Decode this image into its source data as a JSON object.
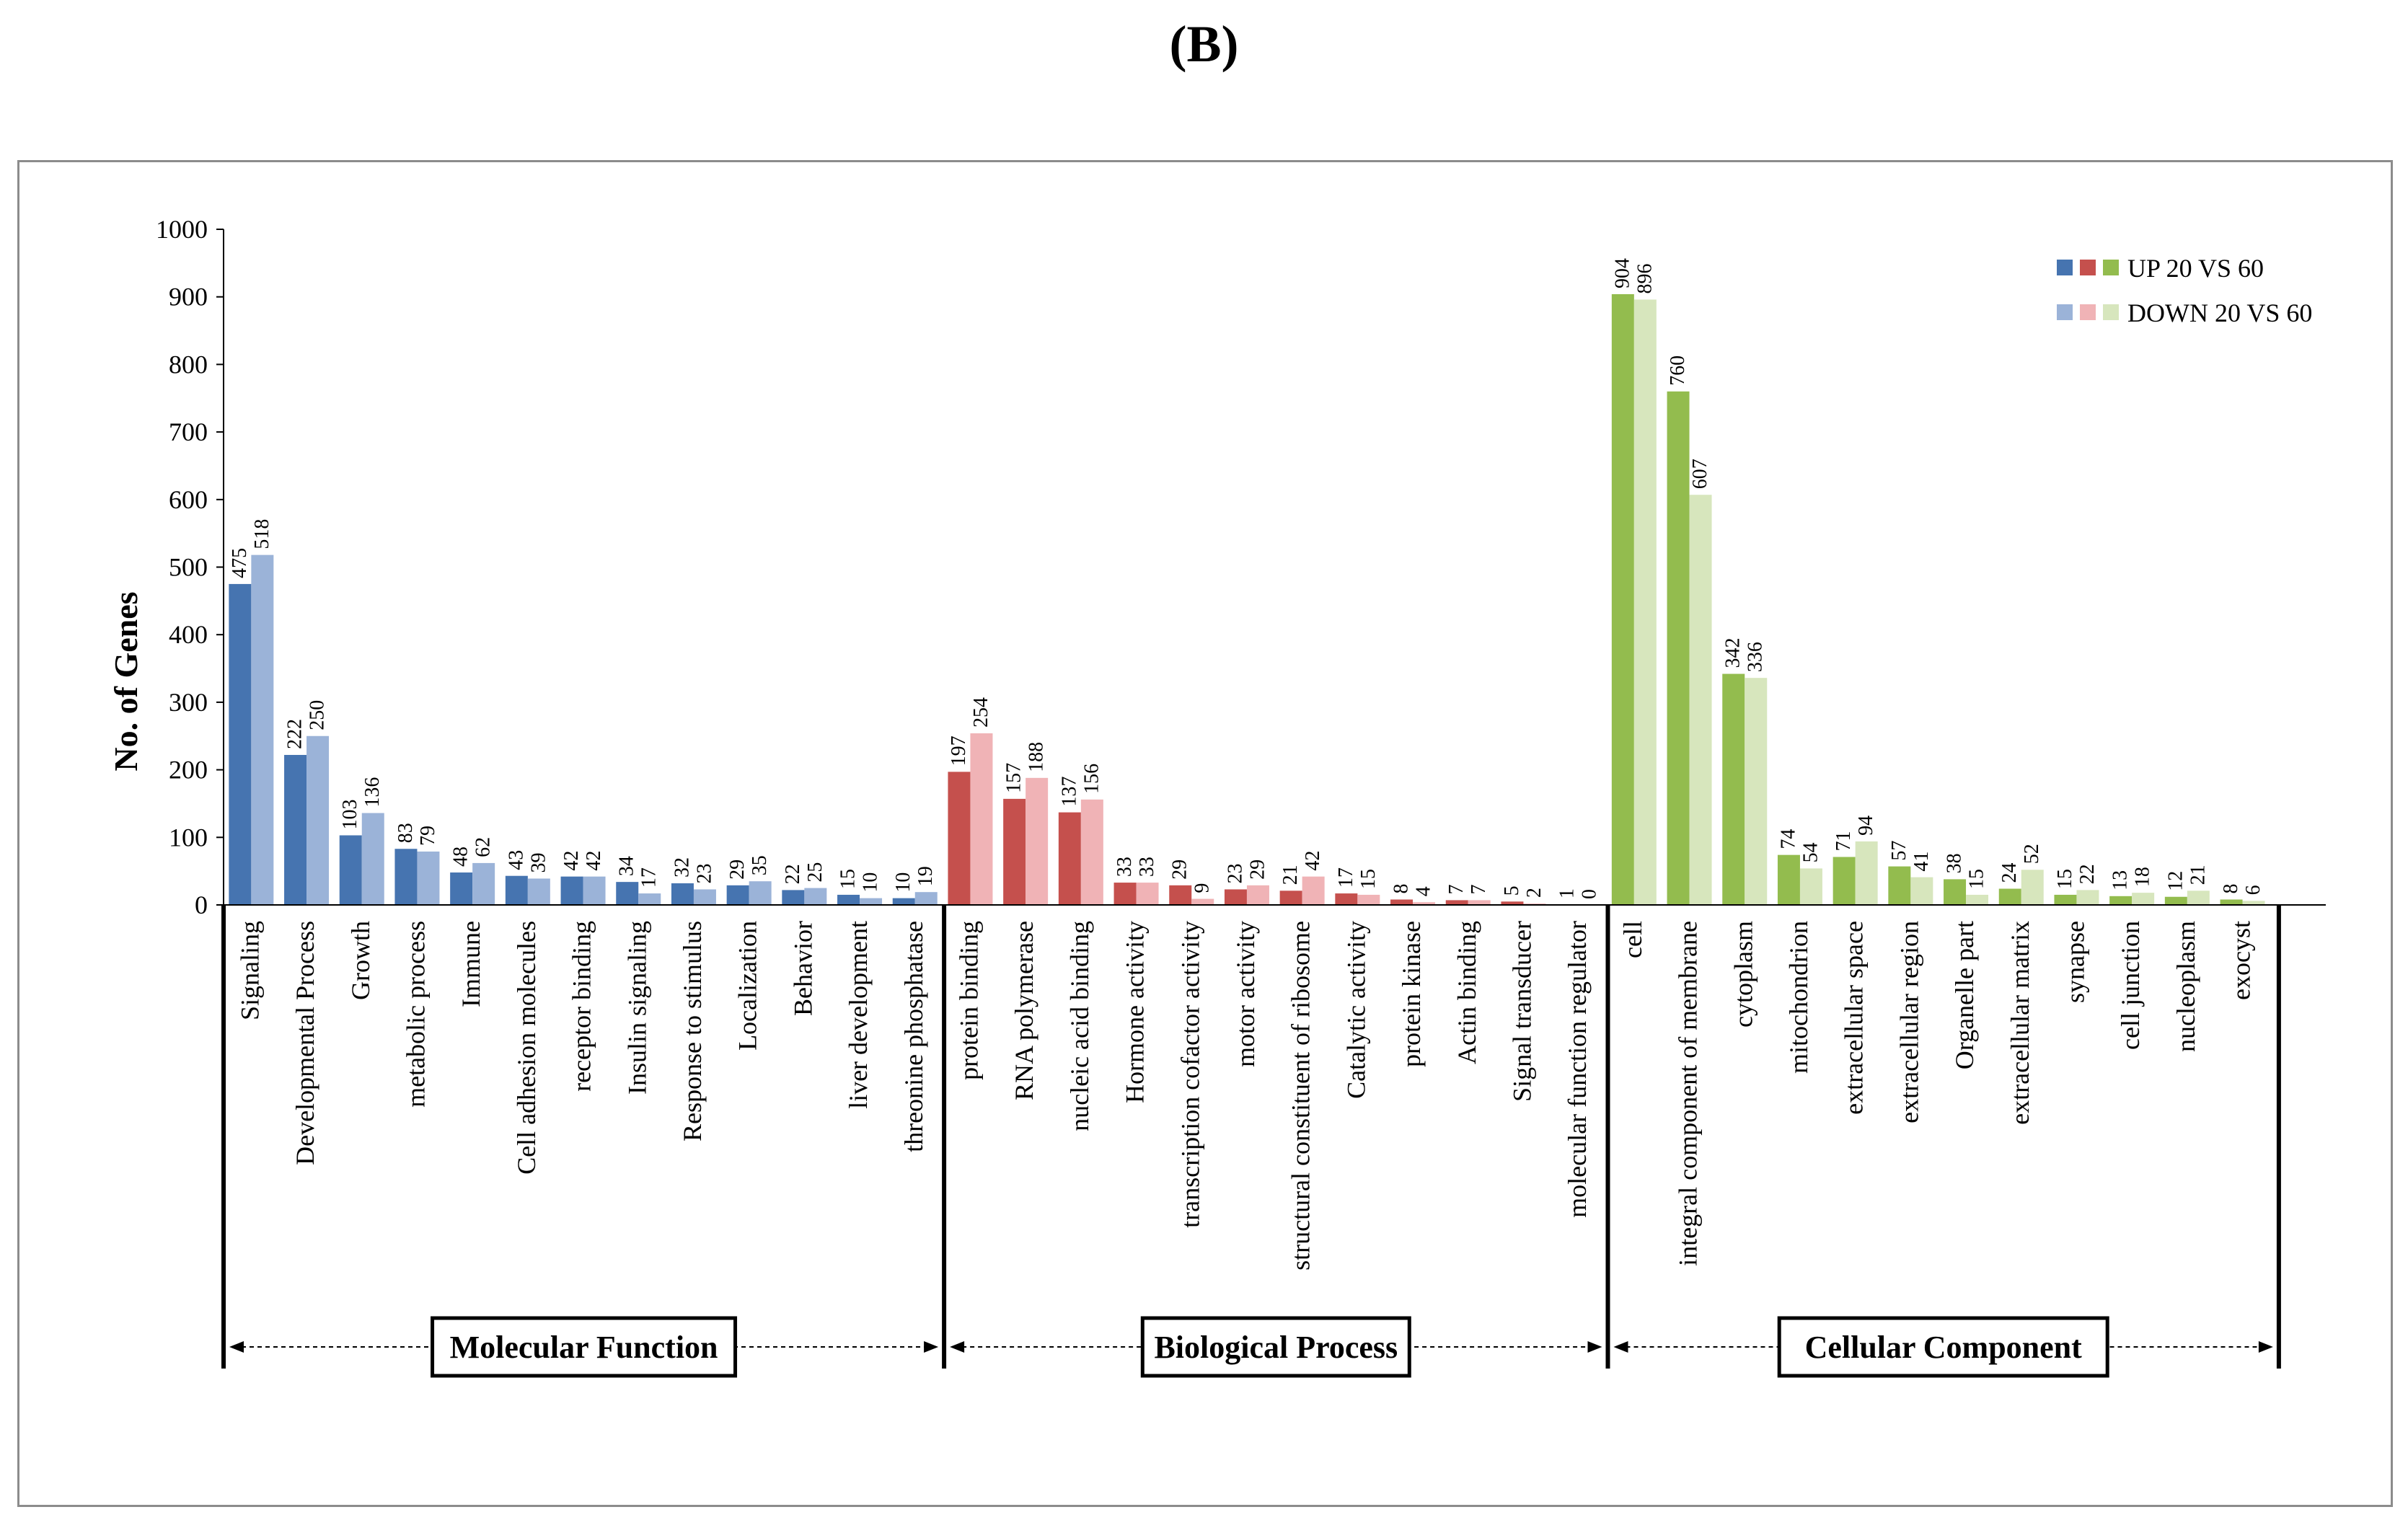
{
  "panel_label": "(B)",
  "colors": {
    "mf_up": "#4674b0",
    "mf_down": "#9bb3d8",
    "bp_up": "#c5504d",
    "bp_down": "#f0b3b6",
    "cc_up": "#93bc4e",
    "cc_down": "#d7e6bd"
  },
  "chart_data": {
    "type": "bar",
    "ylabel": "No. of Genes",
    "ylim": [
      0,
      1000
    ],
    "yticks": [
      "0",
      "100",
      "200",
      "300",
      "400",
      "500",
      "600",
      "700",
      "800",
      "900",
      "1000"
    ],
    "legend": {
      "up": "UP 20 VS 60",
      "down": "DOWN 20 VS 60",
      "placement": "top-right"
    },
    "series_names": [
      "UP 20 VS 60",
      "DOWN 20 VS 60"
    ],
    "groups": [
      {
        "name": "Molecular Function",
        "categories": [
          "Signaling",
          "Developmental Process",
          "Growth",
          "metabolic process",
          "Immune",
          "Cell adhesion molecules",
          "receptor binding",
          "Insulin signaling",
          "Response to stimulus",
          "Localization",
          "Behavior",
          "liver development",
          "threonine phosphatase"
        ],
        "up": [
          475,
          222,
          103,
          83,
          48,
          43,
          42,
          34,
          32,
          29,
          22,
          15,
          10
        ],
        "down": [
          518,
          250,
          136,
          79,
          62,
          39,
          42,
          17,
          23,
          35,
          25,
          10,
          19
        ]
      },
      {
        "name": "Biological Process",
        "categories": [
          "protein binding",
          "RNA polymerase",
          "nucleic acid binding",
          "Hormone activity",
          "transcription cofactor activity",
          "motor activity",
          "structural constituent of ribosome",
          "Catalytic activity",
          "protein kinase",
          "Actin binding",
          "Signal transducer",
          "molecular function regulator"
        ],
        "up": [
          197,
          157,
          137,
          33,
          29,
          23,
          21,
          17,
          8,
          7,
          5,
          1
        ],
        "down": [
          254,
          188,
          156,
          33,
          9,
          29,
          42,
          15,
          4,
          7,
          2,
          0
        ]
      },
      {
        "name": "Cellular Component",
        "categories": [
          "cell",
          "integral component of membrane",
          "cytoplasm",
          "mitochondrion",
          "extracellular space",
          "extracellular region",
          "Organelle part",
          "extracellular matrix",
          "synapse",
          "cell junction",
          "nucleoplasm",
          "exocyst"
        ],
        "up": [
          904,
          760,
          342,
          74,
          71,
          57,
          38,
          24,
          15,
          13,
          12,
          8
        ],
        "down": [
          896,
          607,
          336,
          54,
          94,
          41,
          15,
          52,
          22,
          18,
          21,
          6
        ]
      }
    ]
  }
}
